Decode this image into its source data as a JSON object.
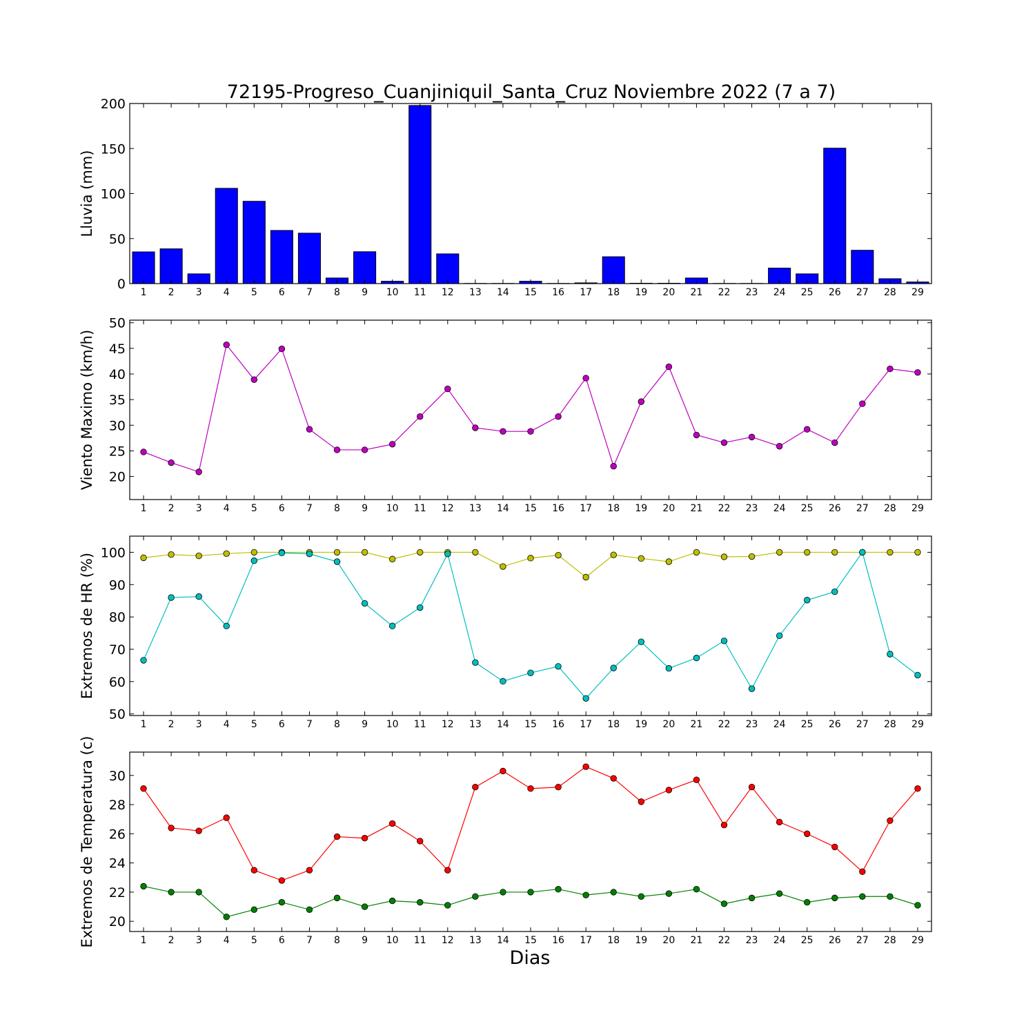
{
  "title": "72195-Progreso_Cuanjiniquil_Santa_Cruz Noviembre 2022  (7 a 7)",
  "xlabel": "Dias",
  "chart_data": [
    {
      "type": "bar",
      "ylabel": "Lluvia (mm)",
      "categories": [
        1,
        2,
        3,
        4,
        5,
        6,
        7,
        8,
        9,
        10,
        11,
        12,
        13,
        14,
        15,
        16,
        17,
        18,
        19,
        20,
        21,
        22,
        23,
        24,
        25,
        26,
        27,
        28,
        29
      ],
      "ylim": [
        0,
        200
      ],
      "yticks": [
        0,
        50,
        100,
        150,
        200
      ],
      "series": [
        {
          "color": "#0000ff",
          "values": [
            35.2,
            38.6,
            10.8,
            105.8,
            91.4,
            59.0,
            56.0,
            6.2,
            35.4,
            2.6,
            197.8,
            33.0,
            0.2,
            0.2,
            2.6,
            0.2,
            0.8,
            29.8,
            0.4,
            0.4,
            6.2,
            0.2,
            0.2,
            17.2,
            10.8,
            150.4,
            37.0,
            5.4,
            1.8
          ]
        }
      ]
    },
    {
      "type": "line",
      "ylabel": "Viento Maximo (km/h)",
      "x": [
        1,
        2,
        3,
        4,
        5,
        6,
        7,
        8,
        9,
        10,
        11,
        12,
        13,
        14,
        15,
        16,
        17,
        18,
        19,
        20,
        21,
        22,
        23,
        24,
        25,
        26,
        27,
        28,
        29
      ],
      "ylim": [
        15.5,
        50.5
      ],
      "yticks": [
        20,
        25,
        30,
        35,
        40,
        45,
        50
      ],
      "series": [
        {
          "color": "#bf00bf",
          "values": [
            24.8,
            22.7,
            20.9,
            45.7,
            38.9,
            44.9,
            29.2,
            25.2,
            25.2,
            26.3,
            31.7,
            37.1,
            29.5,
            28.8,
            28.8,
            31.7,
            39.2,
            22.0,
            34.6,
            41.4,
            28.1,
            26.6,
            27.7,
            25.9,
            29.2,
            26.6,
            34.2,
            41.0,
            40.3
          ]
        }
      ]
    },
    {
      "type": "line",
      "ylabel": "Extremos de HR (%)",
      "x": [
        1,
        2,
        3,
        4,
        5,
        6,
        7,
        8,
        9,
        10,
        11,
        12,
        13,
        14,
        15,
        16,
        17,
        18,
        19,
        20,
        21,
        22,
        23,
        24,
        25,
        26,
        27,
        28,
        29
      ],
      "ylim": [
        49.5,
        105
      ],
      "yticks": [
        50,
        60,
        70,
        80,
        90,
        100
      ],
      "series": [
        {
          "color": "#bfbf00",
          "values": [
            98.3,
            99.3,
            98.9,
            99.6,
            100,
            100,
            100,
            100,
            100,
            97.9,
            100,
            100,
            100,
            95.6,
            98.2,
            99.1,
            92.3,
            99.2,
            98.1,
            97.1,
            100,
            98.6,
            98.7,
            100,
            100,
            100,
            100,
            100,
            100
          ]
        },
        {
          "color": "#00bfbf",
          "values": [
            66.6,
            86.0,
            86.3,
            77.2,
            97.4,
            99.8,
            99.5,
            97.1,
            84.2,
            77.2,
            82.9,
            99.5,
            65.9,
            60.1,
            62.7,
            64.7,
            54.8,
            64.2,
            72.3,
            64.1,
            67.3,
            72.6,
            57.8,
            74.2,
            85.2,
            87.8,
            100,
            68.5,
            62.0
          ]
        }
      ]
    },
    {
      "type": "line",
      "ylabel": "Extremos de Temperatura (c)",
      "x": [
        1,
        2,
        3,
        4,
        5,
        6,
        7,
        8,
        9,
        10,
        11,
        12,
        13,
        14,
        15,
        16,
        17,
        18,
        19,
        20,
        21,
        22,
        23,
        24,
        25,
        26,
        27,
        28,
        29
      ],
      "ylim": [
        19.3,
        31.6
      ],
      "yticks": [
        20,
        22,
        24,
        26,
        28,
        30
      ],
      "series": [
        {
          "color": "#ff0000",
          "values": [
            29.1,
            26.4,
            26.2,
            27.1,
            23.5,
            22.8,
            23.5,
            25.8,
            25.7,
            26.7,
            25.5,
            23.5,
            29.2,
            30.3,
            29.1,
            29.2,
            30.6,
            29.8,
            28.2,
            29.0,
            29.7,
            26.6,
            29.2,
            26.8,
            26.0,
            25.1,
            23.4,
            26.9,
            29.1
          ]
        },
        {
          "color": "#008000",
          "values": [
            22.4,
            22.0,
            22.0,
            20.3,
            20.8,
            21.3,
            20.8,
            21.6,
            21.0,
            21.4,
            21.3,
            21.1,
            21.7,
            22.0,
            22.0,
            22.2,
            21.8,
            22.0,
            21.7,
            21.9,
            22.2,
            21.2,
            21.6,
            21.9,
            21.3,
            21.6,
            21.7,
            21.7,
            21.1
          ]
        }
      ]
    }
  ]
}
